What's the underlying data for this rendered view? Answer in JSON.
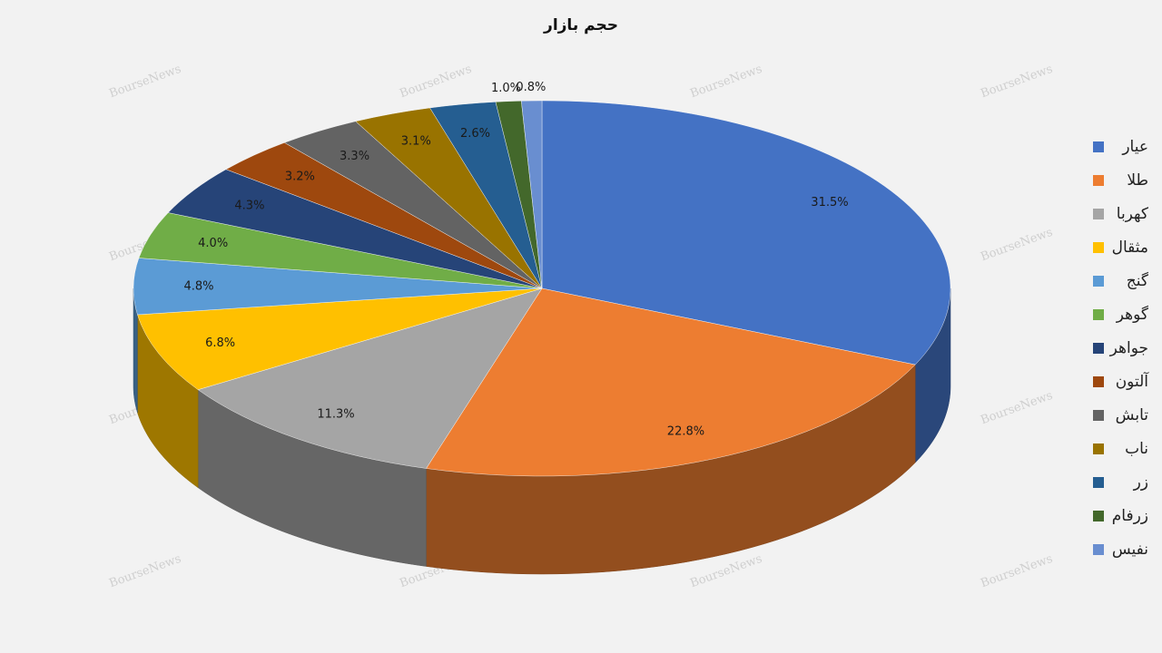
{
  "chart_data": {
    "type": "pie3d",
    "title": "حجم بازار",
    "watermark": "BourseNews",
    "categories": [
      "عیار",
      "طلا",
      "کهربا",
      "مثقال",
      "گنج",
      "گوهر",
      "جواهر",
      "آلتون",
      "تابش",
      "ناب",
      "زر",
      "زرفام",
      "نفیس"
    ],
    "values": [
      31.5,
      22.8,
      11.3,
      6.8,
      4.8,
      4.0,
      4.3,
      3.2,
      3.3,
      3.1,
      2.6,
      1.0,
      0.8
    ],
    "value_labels": [
      "31.5%",
      "22.8%",
      "11.3%",
      "6.8%",
      "4.8%",
      "4.0%",
      "4.3%",
      "3.2%",
      "3.3%",
      "3.1%",
      "2.6%",
      "1.0%",
      "0.8%"
    ],
    "colors": [
      "#4472c4",
      "#ed7d31",
      "#a5a5a5",
      "#ffc000",
      "#5b9bd5",
      "#70ad47",
      "#264478",
      "#9e480e",
      "#636363",
      "#997300",
      "#255e91",
      "#43682b",
      "#698ed0"
    ],
    "legend": "right"
  }
}
